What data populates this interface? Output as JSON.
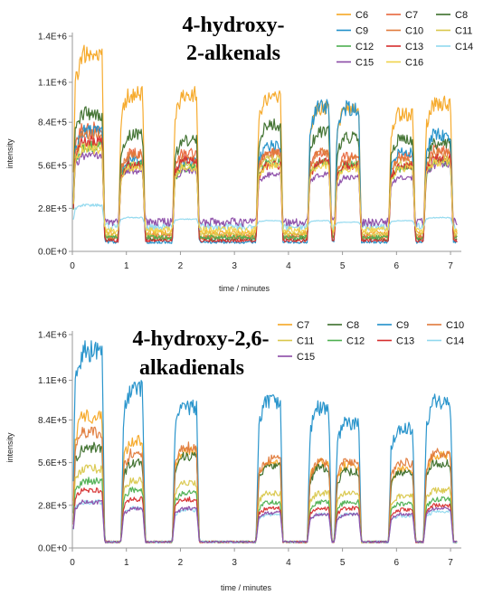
{
  "chart_data": [
    {
      "type": "line",
      "title_lines": [
        "4-hydroxy-",
        "2-alkenals"
      ],
      "xlabel": "time / minutes",
      "ylabel": "intensity",
      "xlim": [
        0,
        7.2
      ],
      "ylim": [
        0,
        1400000
      ],
      "x_ticks": [
        "0",
        "1",
        "2",
        "3",
        "4",
        "5",
        "6",
        "7"
      ],
      "y_ticks": [
        {
          "value": 0,
          "label": "0.0E+0"
        },
        {
          "value": 280000,
          "label": "2.8E+5"
        },
        {
          "value": 560000,
          "label": "5.6E+5"
        },
        {
          "value": 840000,
          "label": "8.4E+5"
        },
        {
          "value": 1100000,
          "label": "1.1E+6"
        },
        {
          "value": 1400000,
          "label": "1.4E+6"
        }
      ],
      "pulse_windows": [
        [
          0.05,
          0.55
        ],
        [
          0.9,
          1.3
        ],
        [
          1.9,
          2.3
        ],
        [
          3.45,
          3.85
        ],
        [
          4.4,
          4.75
        ],
        [
          4.9,
          5.3
        ],
        [
          5.9,
          6.3
        ],
        [
          6.55,
          7.0
        ]
      ],
      "legend_columns": 3,
      "series": [
        {
          "name": "C6",
          "color": "#f5a623",
          "baseline": 120000,
          "peaks": [
            1280000,
            1020000,
            1020000,
            1000000,
            930000,
            930000,
            890000,
            960000
          ]
        },
        {
          "name": "C7",
          "color": "#e8663c",
          "baseline": 100000,
          "peaks": [
            800000,
            640000,
            640000,
            640000,
            640000,
            620000,
            620000,
            660000
          ]
        },
        {
          "name": "C8",
          "color": "#3b6e2a",
          "baseline": 80000,
          "peaks": [
            900000,
            760000,
            720000,
            820000,
            780000,
            740000,
            730000,
            700000
          ]
        },
        {
          "name": "C9",
          "color": "#1f8fc9",
          "baseline": 60000,
          "peaks": [
            780000,
            600000,
            580000,
            690000,
            940000,
            930000,
            640000,
            760000
          ]
        },
        {
          "name": "C10",
          "color": "#e07a3a",
          "baseline": 90000,
          "peaks": [
            760000,
            620000,
            600000,
            640000,
            640000,
            600000,
            600000,
            640000
          ]
        },
        {
          "name": "C11",
          "color": "#d9c74a",
          "baseline": 110000,
          "peaks": [
            700000,
            560000,
            560000,
            600000,
            580000,
            560000,
            560000,
            600000
          ]
        },
        {
          "name": "C12",
          "color": "#4caf50",
          "baseline": 90000,
          "peaks": [
            680000,
            560000,
            540000,
            580000,
            580000,
            560000,
            540000,
            580000
          ]
        },
        {
          "name": "C13",
          "color": "#d62d2d",
          "baseline": 70000,
          "peaks": [
            720000,
            560000,
            600000,
            560000,
            580000,
            560000,
            560000,
            600000
          ]
        },
        {
          "name": "C14",
          "color": "#8fd8ee",
          "baseline": 160000,
          "peaks": [
            300000,
            220000,
            210000,
            200000,
            200000,
            190000,
            200000,
            220000
          ]
        },
        {
          "name": "C15",
          "color": "#8a4aa6",
          "baseline": 190000,
          "peaks": [
            620000,
            520000,
            520000,
            500000,
            500000,
            480000,
            480000,
            560000
          ]
        },
        {
          "name": "C16",
          "color": "#f0d24a",
          "baseline": 140000,
          "peaks": [
            660000,
            540000,
            540000,
            560000,
            560000,
            540000,
            540000,
            580000
          ]
        }
      ]
    },
    {
      "type": "line",
      "title_lines": [
        "4-hydroxy-2,6-",
        "alkadienals"
      ],
      "xlabel": "time / minutes",
      "ylabel": "intensity",
      "xlim": [
        0,
        7.2
      ],
      "ylim": [
        0,
        1400000
      ],
      "x_ticks": [
        "0",
        "1",
        "2",
        "3",
        "4",
        "5",
        "6",
        "7"
      ],
      "y_ticks": [
        {
          "value": 0,
          "label": "0.0E+0"
        },
        {
          "value": 280000,
          "label": "2.8E+5"
        },
        {
          "value": 560000,
          "label": "5.6E+5"
        },
        {
          "value": 840000,
          "label": "8.4E+5"
        },
        {
          "value": 1100000,
          "label": "1.1E+6"
        },
        {
          "value": 1400000,
          "label": "1.4E+6"
        }
      ],
      "pulse_windows": [
        [
          0.05,
          0.55
        ],
        [
          0.95,
          1.3
        ],
        [
          1.9,
          2.3
        ],
        [
          3.45,
          3.85
        ],
        [
          4.4,
          4.75
        ],
        [
          4.9,
          5.3
        ],
        [
          5.9,
          6.3
        ],
        [
          6.55,
          7.0
        ]
      ],
      "legend_columns": 4,
      "series": [
        {
          "name": "C7",
          "color": "#f5a623",
          "baseline": 40000,
          "peaks": [
            860000,
            700000,
            640000,
            560000,
            560000,
            540000,
            520000,
            600000
          ]
        },
        {
          "name": "C8",
          "color": "#3b6e2a",
          "baseline": 40000,
          "peaks": [
            660000,
            560000,
            600000,
            540000,
            520000,
            500000,
            500000,
            560000
          ]
        },
        {
          "name": "C9",
          "color": "#1f8fc9",
          "baseline": 40000,
          "peaks": [
            1290000,
            1050000,
            920000,
            960000,
            920000,
            820000,
            780000,
            960000
          ]
        },
        {
          "name": "C10",
          "color": "#e07a3a",
          "baseline": 40000,
          "peaks": [
            760000,
            620000,
            660000,
            580000,
            560000,
            560000,
            560000,
            620000
          ]
        },
        {
          "name": "C11",
          "color": "#d9c74a",
          "baseline": 40000,
          "peaks": [
            520000,
            440000,
            420000,
            360000,
            360000,
            360000,
            340000,
            380000
          ]
        },
        {
          "name": "C12",
          "color": "#4caf50",
          "baseline": 40000,
          "peaks": [
            440000,
            380000,
            360000,
            300000,
            300000,
            300000,
            290000,
            320000
          ]
        },
        {
          "name": "C13",
          "color": "#d62d2d",
          "baseline": 40000,
          "peaks": [
            380000,
            320000,
            320000,
            260000,
            260000,
            260000,
            250000,
            280000
          ]
        },
        {
          "name": "C14",
          "color": "#8fd8ee",
          "baseline": 40000,
          "peaks": [
            300000,
            260000,
            250000,
            220000,
            220000,
            220000,
            210000,
            240000
          ]
        },
        {
          "name": "C15",
          "color": "#8a4aa6",
          "baseline": 40000,
          "peaks": [
            300000,
            260000,
            260000,
            230000,
            220000,
            220000,
            220000,
            260000
          ]
        }
      ]
    }
  ]
}
